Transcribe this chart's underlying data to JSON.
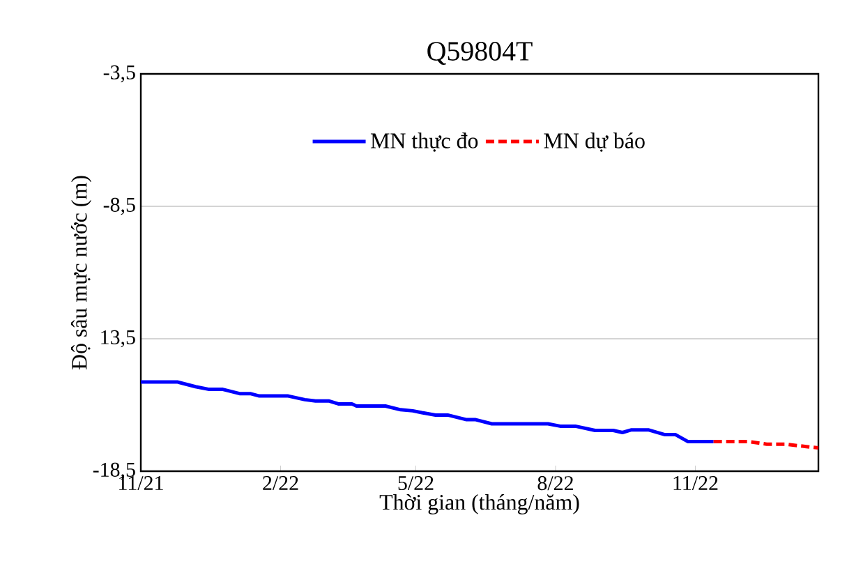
{
  "chart_data": {
    "type": "line",
    "title": "Q59804T",
    "xlabel": "Thời gian (tháng/năm)",
    "ylabel": "Độ sâu mực nước (m)",
    "xlim": [
      "2021-11-01",
      "2023-01-21"
    ],
    "xticks": [
      {
        "value": "2021-11-01",
        "label": "11/21"
      },
      {
        "value": "2022-02-01",
        "label": "2/22"
      },
      {
        "value": "2022-05-01",
        "label": "5/22"
      },
      {
        "value": "2022-08-01",
        "label": "8/22"
      },
      {
        "value": "2022-11-01",
        "label": "11/22"
      }
    ],
    "ylim": [
      -18.5,
      -3.5
    ],
    "yticks": [
      {
        "value": -18.5,
        "label": "-18,5"
      },
      {
        "value": -13.5,
        "label": "13,5"
      },
      {
        "value": -8.5,
        "label": "-8,5"
      },
      {
        "value": -3.5,
        "label": "-3,5"
      }
    ],
    "grid": "y",
    "legend": "top",
    "series": [
      {
        "name": "MN thực đo",
        "color": "#0000ff",
        "line_style": "solid",
        "x": [
          "2021-11-01",
          "2021-11-25",
          "2021-12-07",
          "2021-12-16",
          "2021-12-25",
          "2022-01-05",
          "2022-01-12",
          "2022-01-18",
          "2022-02-06",
          "2022-02-17",
          "2022-02-24",
          "2022-03-05",
          "2022-03-11",
          "2022-03-20",
          "2022-03-23",
          "2022-04-11",
          "2022-04-21",
          "2022-04-29",
          "2022-05-05",
          "2022-05-14",
          "2022-05-22",
          "2022-06-03",
          "2022-06-09",
          "2022-06-20",
          "2022-07-27",
          "2022-08-04",
          "2022-08-14",
          "2022-08-27",
          "2022-09-08",
          "2022-09-14",
          "2022-09-20",
          "2022-10-01",
          "2022-10-12",
          "2022-10-19",
          "2022-10-27",
          "2022-11-13"
        ],
        "values": [
          -15.13,
          -15.13,
          -15.31,
          -15.41,
          -15.41,
          -15.57,
          -15.57,
          -15.66,
          -15.66,
          -15.8,
          -15.85,
          -15.85,
          -15.96,
          -15.96,
          -16.04,
          -16.04,
          -16.18,
          -16.22,
          -16.29,
          -16.38,
          -16.38,
          -16.55,
          -16.55,
          -16.71,
          -16.71,
          -16.8,
          -16.8,
          -16.96,
          -16.96,
          -17.04,
          -16.94,
          -16.94,
          -17.12,
          -17.12,
          -17.38,
          -17.38
        ]
      },
      {
        "name": "MN dự báo",
        "color": "#ff0000",
        "line_style": "dashed",
        "x": [
          "2022-11-13",
          "2022-12-06",
          "2022-12-18",
          "2022-12-30",
          "2023-01-13",
          "2023-01-21"
        ],
        "values": [
          -17.38,
          -17.38,
          -17.48,
          -17.48,
          -17.57,
          -17.62
        ]
      }
    ]
  }
}
